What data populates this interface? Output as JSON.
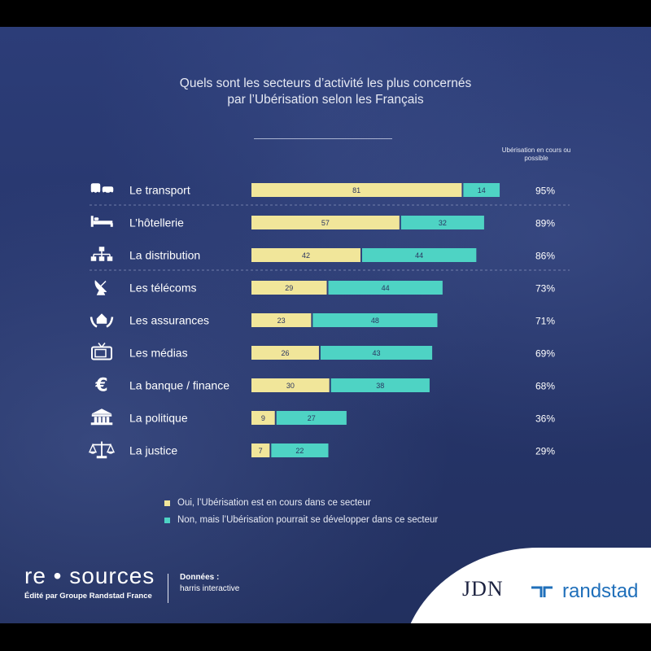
{
  "title": {
    "line1": "Quels sont les secteurs d’activité les plus concernés",
    "line2": "par l’Ubérisation selon les Français"
  },
  "total_header": "Ubérisation en cours ou possible",
  "colors": {
    "oui": "#f1e69a",
    "non": "#4ed3c4",
    "background": "#27366c",
    "text": "#ffffff"
  },
  "chart_data": {
    "type": "bar",
    "orientation": "horizontal",
    "stacked": true,
    "categories": [
      "Le transport",
      "L’hôtellerie",
      "La distribution",
      "Les télécoms",
      "Les assurances",
      "Les médias",
      "La banque / finance",
      "La politique",
      "La justice"
    ],
    "series": [
      {
        "name": "Oui, l’Ubérisation est en cours dans ce secteur",
        "values": [
          81,
          57,
          42,
          29,
          23,
          26,
          30,
          9,
          7
        ]
      },
      {
        "name": "Non, mais l’Ubérisation pourrait se développer dans ce secteur",
        "values": [
          14,
          32,
          44,
          44,
          48,
          43,
          38,
          27,
          22
        ]
      }
    ],
    "totals": [
      "95%",
      "89%",
      "86%",
      "73%",
      "71%",
      "69%",
      "68%",
      "36%",
      "29%"
    ],
    "icons": [
      "bus-car-icon",
      "bed-icon",
      "network-icon",
      "satellite-dish-icon",
      "house-hands-icon",
      "tv-icon",
      "euro-icon",
      "government-building-icon",
      "scales-icon"
    ],
    "xlim": [
      0,
      100
    ],
    "legend_position": "bottom"
  },
  "legend": [
    "Oui, l’Ubérisation est en cours dans ce secteur",
    "Non, mais l’Ubérisation pourrait se développer dans ce secteur"
  ],
  "footer": {
    "brand": "re • sources",
    "brand_sub": "Édité par Groupe Randstad France",
    "source_key": "Données :",
    "source_value": "harris interactive",
    "logo_jdn": "JDN",
    "logo_randstad": "randstad"
  }
}
